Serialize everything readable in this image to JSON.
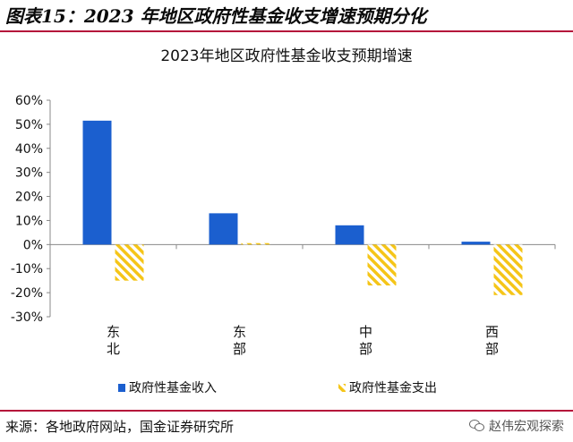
{
  "figure_title": "图表15：2023 年地区政府性基金收支增速预期分化",
  "source_text": "来源：各地政府网站，国金证券研究所",
  "watermark": {
    "icon": "wechat-icon",
    "text": "赵伟宏观探索"
  },
  "colors": {
    "rule": "#b5123a",
    "income": "#1b5fcf",
    "expense": "#f5c518"
  },
  "chart_data": {
    "type": "bar",
    "title": "2023年地区政府性基金收支预期增速",
    "categories": [
      "东北",
      "东部",
      "中部",
      "西部"
    ],
    "series": [
      {
        "name": "政府性基金收入",
        "values": [
          51.5,
          13,
          8,
          1.2
        ],
        "fill": "solid",
        "color": "#1b5fcf"
      },
      {
        "name": "政府性基金支出",
        "values": [
          -15,
          0.6,
          -17,
          -21
        ],
        "fill": "hatched",
        "color": "#f5c518"
      }
    ],
    "ylim": [
      -30,
      60
    ],
    "yticks": [
      60,
      50,
      40,
      30,
      20,
      10,
      0,
      -10,
      -20,
      -30
    ],
    "ytick_labels": [
      "60%",
      "50%",
      "40%",
      "30%",
      "20%",
      "10%",
      "0%",
      "-10%",
      "-20%",
      "-30%"
    ],
    "xlabel": "",
    "ylabel": "",
    "grid": false,
    "legend_position": "bottom"
  }
}
